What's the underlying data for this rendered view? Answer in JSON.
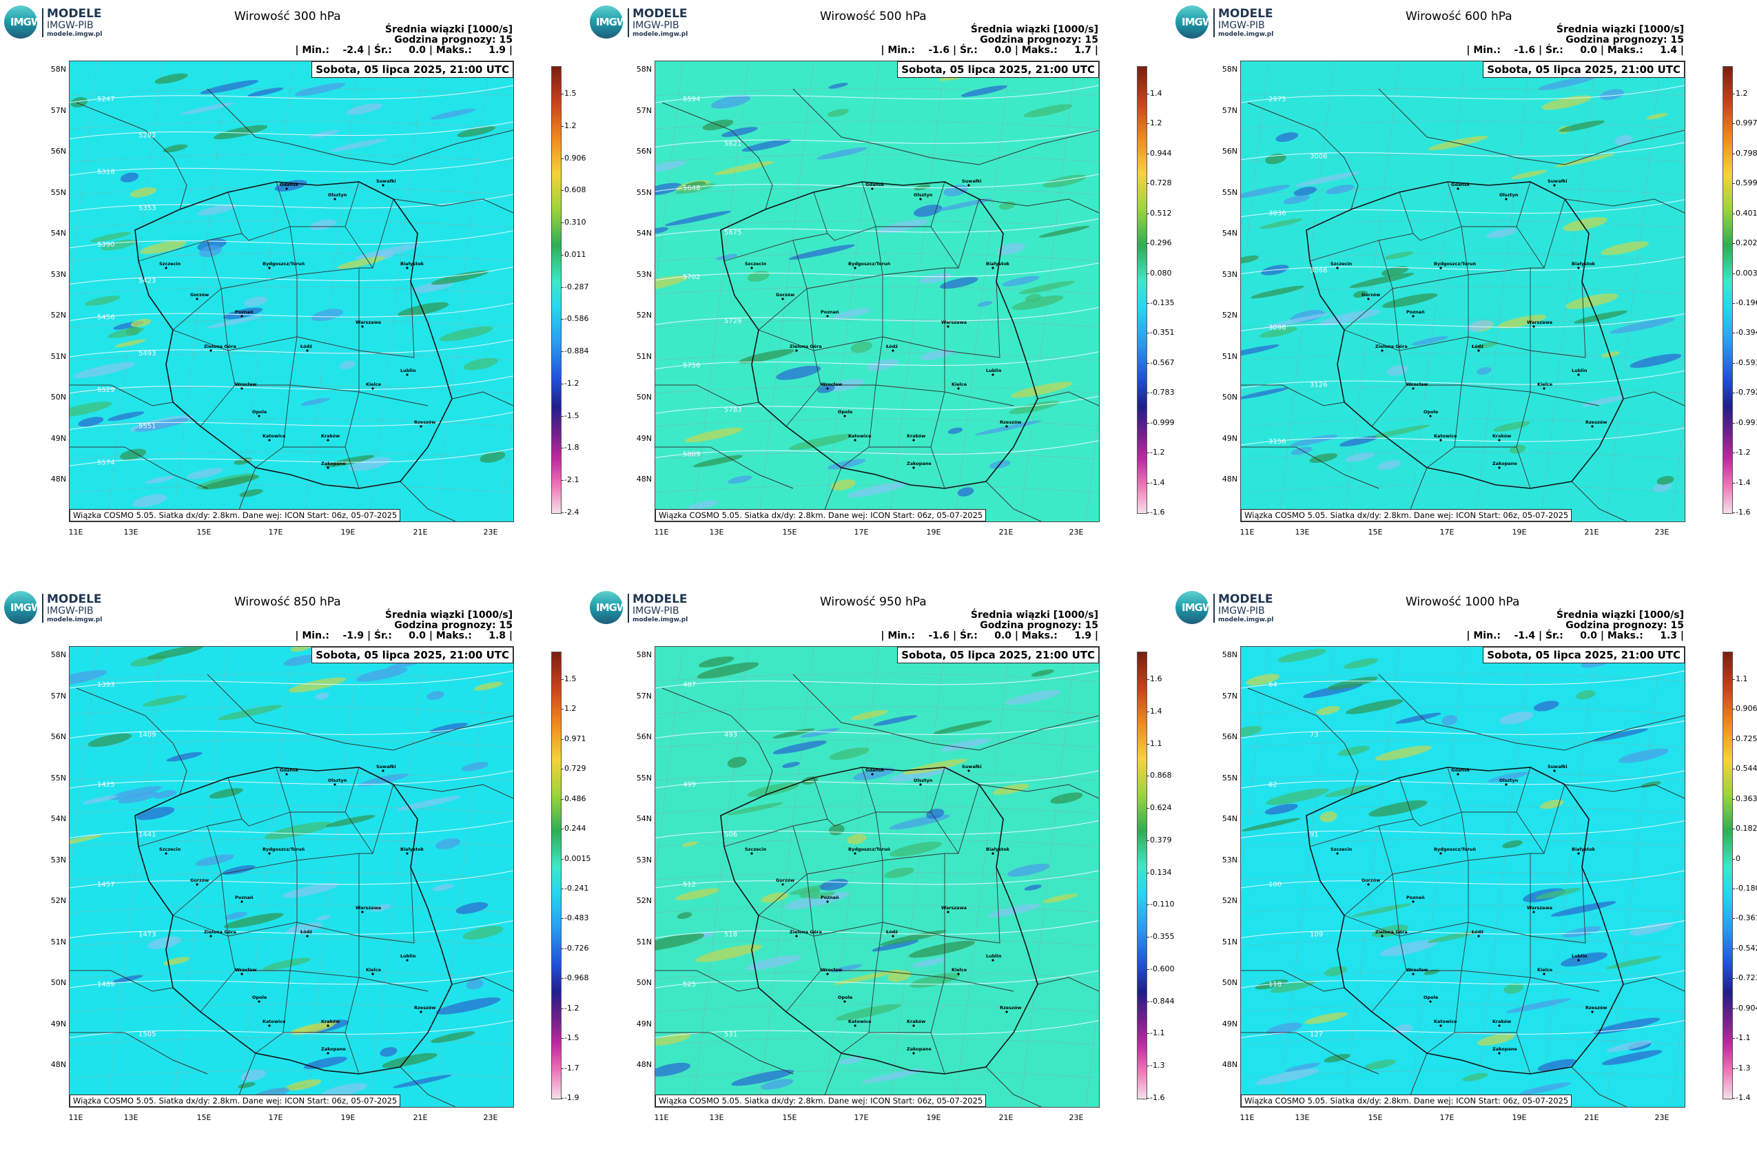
{
  "org": {
    "name_line1": "MODELE",
    "name_line2": "IMGW-PIB",
    "website": "modele.imgw.pl",
    "logo_text": "IMGW"
  },
  "common": {
    "subtitle": "Średnia wiązki [1000/s]",
    "forecast_hour": "Godzina prognozy: 15",
    "date": "Sobota, 05 lipca 2025, 21:00 UTC",
    "footer": "Wiązka COSMO 5.05. Siatka dx/dy: 2.8km. Dane wej: ICON Start: 06z, 05-07-2025",
    "lat_labels": [
      "58N",
      "57N",
      "56N",
      "55N",
      "54N",
      "53N",
      "52N",
      "51N",
      "50N",
      "49N",
      "48N"
    ],
    "lon_labels": [
      "11E",
      "13E",
      "15E",
      "17E",
      "19E",
      "21E",
      "23E"
    ]
  },
  "city_names": [
    "Gdańsk",
    "Olsztyn",
    "Suwałki",
    "Szczecin",
    "Białystok",
    "Bydgoszcz/Toruń",
    "Gorzów",
    "Poznań",
    "Warszawa",
    "Zielona Góra",
    "Łódź",
    "Lublin",
    "Wrocław",
    "Kielce",
    "Opole",
    "Rzeszów",
    "Katowice",
    "Kraków",
    "Zakopane"
  ],
  "panels": [
    {
      "title": "Wirowość 300 hPa",
      "stats": "| Min.:    -2.4 | Śr.:     0.0 | Maks.:     1.9 |",
      "colorbar": [
        "1.5",
        "1.2",
        "0.906",
        "0.608",
        "0.310",
        "0.011",
        "-0.287",
        "-0.586",
        "-0.884",
        "-1.2",
        "-1.5",
        "-1.8",
        "-2.1",
        "-2.4"
      ],
      "contours": [
        "5247",
        "5282",
        "5316",
        "5353",
        "5390",
        "5423",
        "5456",
        "5493",
        "5529",
        "5551",
        "5574"
      ],
      "base_color": "#22e5ea"
    },
    {
      "title": "Wirowość 500 hPa",
      "stats": "| Min.:    -1.6 | Śr.:     0.0 | Maks.:     1.7 |",
      "colorbar": [
        "1.4",
        "1.2",
        "0.944",
        "0.728",
        "0.512",
        "0.296",
        "0.080",
        "-0.135",
        "-0.351",
        "-0.567",
        "-0.783",
        "-0.999",
        "-1.2",
        "-1.4",
        "-1.6"
      ],
      "contours": [
        "5594",
        "5621",
        "5648",
        "5675",
        "5702",
        "5729",
        "5756",
        "5783",
        "5809"
      ],
      "base_color": "#3deac8"
    },
    {
      "title": "Wirowość 600 hPa",
      "stats": "| Min.:    -1.6 | Śr.:     0.0 | Maks.:     1.4 |",
      "colorbar": [
        "1.2",
        "0.997",
        "0.798",
        "0.599",
        "0.401",
        "0.202",
        "0.0031",
        "-0.196",
        "-0.394",
        "-0.593",
        "-0.792",
        "-0.991",
        "-1.2",
        "-1.4",
        "-1.6"
      ],
      "contours": [
        "2975",
        "3006",
        "3036",
        "3066",
        "3096",
        "3126",
        "3156"
      ],
      "base_color": "#2ce6dc"
    },
    {
      "title": "Wirowość 850 hPa",
      "stats": "| Min.:    -1.9 | Śr.:     0.0 | Maks.:     1.8 |",
      "colorbar": [
        "1.5",
        "1.2",
        "0.971",
        "0.729",
        "0.486",
        "0.244",
        "0.0015",
        "-0.241",
        "-0.483",
        "-0.726",
        "-0.968",
        "-1.2",
        "-1.5",
        "-1.7",
        "-1.9"
      ],
      "contours": [
        "1393",
        "1409",
        "1425",
        "1441",
        "1457",
        "1473",
        "1489",
        "1505"
      ],
      "base_color": "#1fe3ec"
    },
    {
      "title": "Wirowość 950 hPa",
      "stats": "| Min.:    -1.6 | Śr.:     0.0 | Maks.:     1.9 |",
      "colorbar": [
        "1.6",
        "1.4",
        "1.1",
        "0.868",
        "0.624",
        "0.379",
        "0.134",
        "-0.110",
        "-0.355",
        "-0.600",
        "-0.844",
        "-1.1",
        "-1.3",
        "-1.6"
      ],
      "contours": [
        "487",
        "493",
        "499",
        "506",
        "512",
        "518",
        "525",
        "531"
      ],
      "base_color": "#3fe8c4"
    },
    {
      "title": "Wirowość 1000 hPa",
      "stats": "| Min.:    -1.4 | Śr.:     0.0 | Maks.:     1.3 |",
      "colorbar": [
        "1.1",
        "0.906",
        "0.725",
        "0.544",
        "0.363",
        "0.182",
        "0",
        "-0.180",
        "-0.361",
        "-0.542",
        "-0.723",
        "-0.904",
        "-1.1",
        "-1.3",
        "-1.4"
      ],
      "contours": [
        "64",
        "73",
        "82",
        "91",
        "100",
        "109",
        "118",
        "127"
      ],
      "base_color": "#20e3ee"
    }
  ]
}
